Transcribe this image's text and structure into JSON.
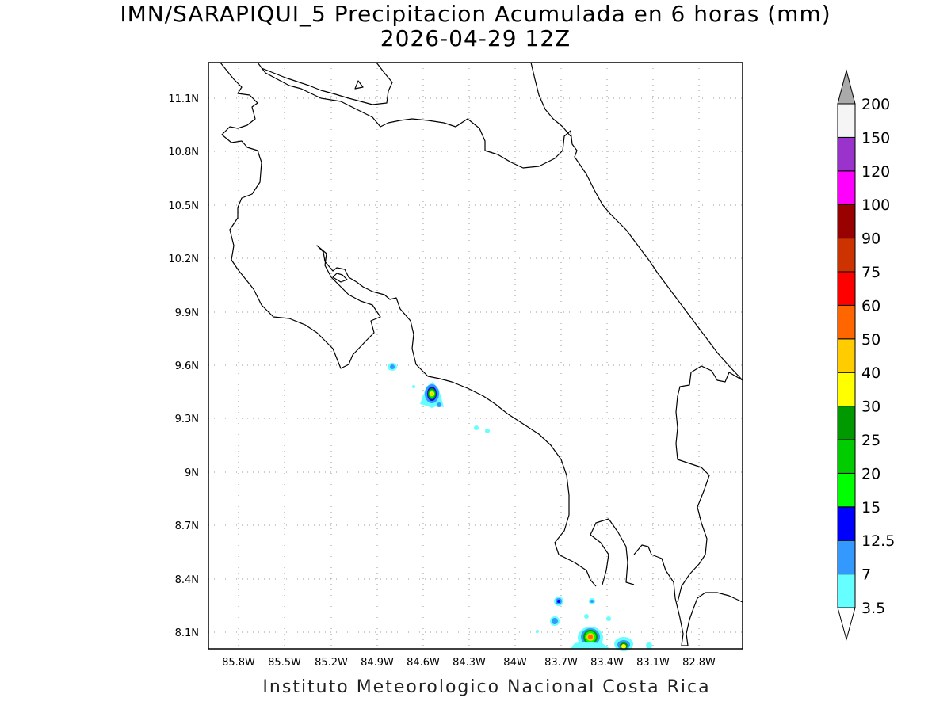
{
  "title": {
    "line1": "IMN/SARAPIQUI_5 Precipitacion Acumulada en 6 horas (mm)",
    "line2": "2026-04-29 12Z"
  },
  "footer": "Instituto Meteorologico Nacional Costa Rica",
  "map": {
    "x_ticks": [
      "85.8W",
      "85.5W",
      "85.2W",
      "84.9W",
      "84.6W",
      "84.3W",
      "84W",
      "83.7W",
      "83.4W",
      "83.1W",
      "82.8W"
    ],
    "y_ticks": [
      "11.1N",
      "10.8N",
      "10.5N",
      "10.2N",
      "9.9N",
      "9.6N",
      "9.3N",
      "9N",
      "8.7N",
      "8.4N",
      "8.1N"
    ],
    "grid": "dotted"
  },
  "colorbar": {
    "labels": [
      "3.5",
      "7",
      "12.5",
      "15",
      "20",
      "25",
      "30",
      "40",
      "50",
      "60",
      "75",
      "90",
      "100",
      "120",
      "150",
      "200"
    ],
    "colors": [
      "#66ffff",
      "#3399ff",
      "#0000ff",
      "#00ff00",
      "#00cc00",
      "#009900",
      "#ffff00",
      "#ffcc00",
      "#ff6600",
      "#ff0000",
      "#cc3300",
      "#990000",
      "#ff00ff",
      "#9933cc",
      "#f5f5f5",
      "#aaaaaa"
    ]
  }
}
